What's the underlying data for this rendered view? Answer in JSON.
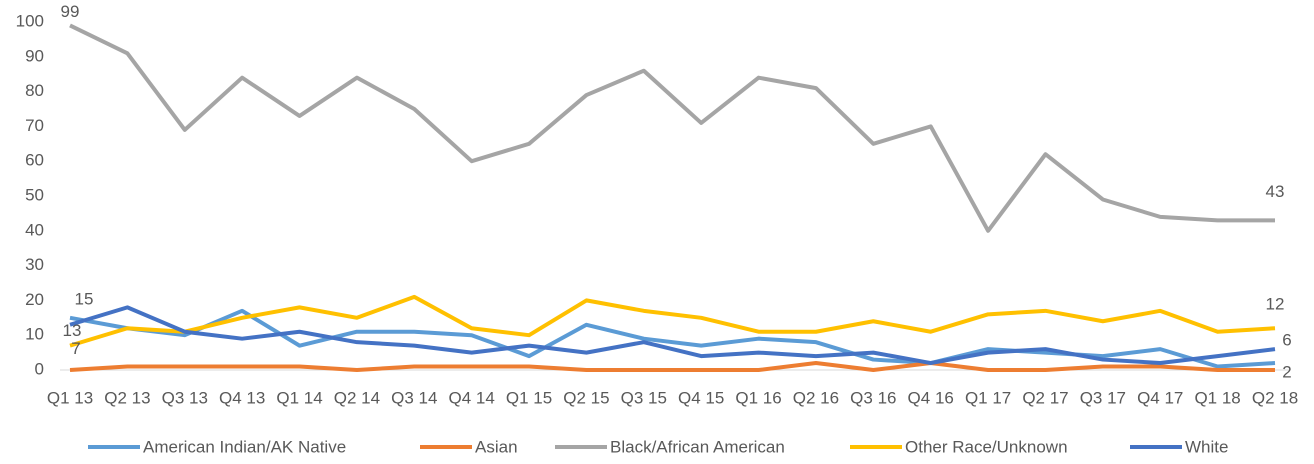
{
  "chart_data": {
    "type": "line",
    "categories": [
      "Q1 13",
      "Q2 13",
      "Q3 13",
      "Q4 13",
      "Q1 14",
      "Q2 14",
      "Q3 14",
      "Q4 14",
      "Q1 15",
      "Q2 15",
      "Q3 15",
      "Q4 15",
      "Q1 16",
      "Q2 16",
      "Q3 16",
      "Q4 16",
      "Q1 17",
      "Q2 17",
      "Q3 17",
      "Q4 17",
      "Q1 18",
      "Q2 18"
    ],
    "series": [
      {
        "name": "American Indian/AK Native",
        "color": "#5b9bd5",
        "values": [
          15,
          12,
          10,
          17,
          7,
          11,
          11,
          10,
          4,
          13,
          9,
          7,
          9,
          8,
          3,
          2,
          6,
          5,
          4,
          6,
          1,
          2
        ],
        "labeled": [
          0,
          21
        ]
      },
      {
        "name": "Asian",
        "color": "#ed7d31",
        "values": [
          0,
          1,
          1,
          1,
          1,
          0,
          1,
          1,
          1,
          0,
          0,
          0,
          0,
          2,
          0,
          2,
          0,
          0,
          1,
          1,
          0,
          0
        ]
      },
      {
        "name": "Black/African American",
        "color": "#a5a5a5",
        "values": [
          99,
          91,
          69,
          84,
          73,
          84,
          75,
          60,
          65,
          79,
          86,
          71,
          84,
          81,
          65,
          70,
          40,
          62,
          49,
          44,
          43,
          43
        ],
        "labeled": [
          0,
          21
        ]
      },
      {
        "name": "Other Race/Unknown",
        "color": "#ffc000",
        "values": [
          7,
          12,
          11,
          15,
          18,
          15,
          21,
          12,
          10,
          20,
          17,
          15,
          11,
          11,
          14,
          11,
          16,
          17,
          14,
          17,
          11,
          12
        ],
        "labeled": [
          0,
          21
        ]
      },
      {
        "name": "White",
        "color": "#4472c4",
        "values": [
          13,
          18,
          11,
          9,
          11,
          8,
          7,
          5,
          7,
          5,
          8,
          4,
          5,
          4,
          5,
          2,
          5,
          6,
          3,
          2,
          4,
          6
        ],
        "labeled": [
          0,
          21
        ]
      }
    ],
    "ylim": [
      0,
      100
    ],
    "yticks": [
      0,
      10,
      20,
      30,
      40,
      50,
      60,
      70,
      80,
      90,
      100
    ],
    "grid": false,
    "legend": "bottom"
  }
}
